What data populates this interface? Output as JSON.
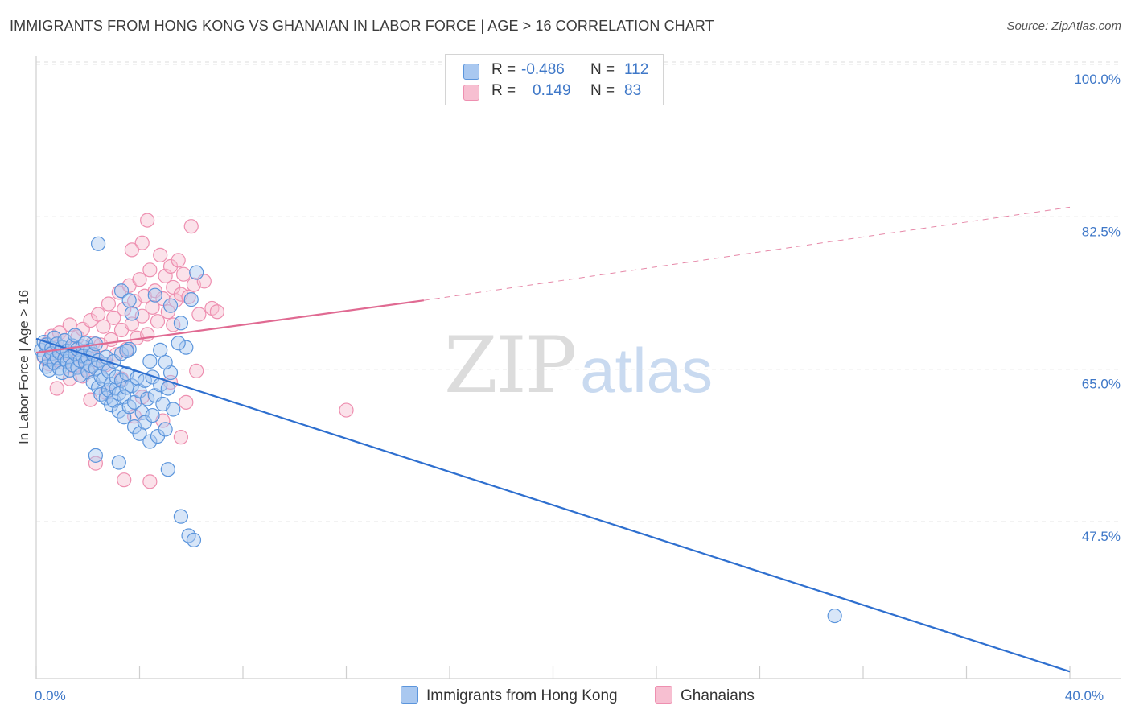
{
  "title": "IMMIGRANTS FROM HONG KONG VS GHANAIAN IN LABOR FORCE | AGE > 16 CORRELATION CHART",
  "source": "Source: ZipAtlas.com",
  "watermark": {
    "zip": "ZIP",
    "atlas": "atlas"
  },
  "legend": {
    "rows": [
      {
        "r_label": "R =",
        "r_value": "-0.486",
        "n_label": "N =",
        "n_value": "112"
      },
      {
        "r_label": "R =",
        "r_value": "0.149",
        "n_label": "N =",
        "n_value": "83"
      }
    ]
  },
  "bottom_legend": {
    "series1": "Immigrants from Hong Kong",
    "series2": "Ghanaians"
  },
  "colors": {
    "blue_fill": "#a9c8f0",
    "blue_stroke": "#5b95dc",
    "blue_line": "#2e6fcf",
    "pink_fill": "#f7bfd1",
    "pink_stroke": "#ee8fb0",
    "pink_line": "#e06a92",
    "tick": "#3f78c8",
    "grid": "#dedede"
  },
  "chart_data": {
    "type": "scatter",
    "title": "IMMIGRANTS FROM HONG KONG VS GHANAIAN IN LABOR FORCE | AGE > 16 CORRELATION CHART",
    "xlabel": "",
    "ylabel": "In Labor Force | Age > 16",
    "xlim": [
      0,
      40
    ],
    "ylim": [
      29.5,
      101
    ],
    "x_tick_labels": [
      {
        "v": 0,
        "t": "0.0%"
      },
      {
        "v": 40,
        "t": "40.0%"
      }
    ],
    "y_tick_labels": [
      {
        "v": 100,
        "t": "100.0%"
      },
      {
        "v": 82.5,
        "t": "82.5%"
      },
      {
        "v": 65,
        "t": "65.0%"
      },
      {
        "v": 47.5,
        "t": "47.5%"
      }
    ],
    "x_minor_ticks": [
      0,
      4,
      8,
      12,
      16,
      20,
      24,
      28,
      32,
      36,
      40
    ],
    "series": [
      {
        "name": "Immigrants from Hong Kong",
        "r": -0.486,
        "n": 112,
        "trend": {
          "x": [
            0,
            40
          ],
          "y": [
            68.5,
            30.3
          ],
          "dashed": false
        },
        "points": [
          [
            0.2,
            67.2
          ],
          [
            0.3,
            66.5
          ],
          [
            0.3,
            68.1
          ],
          [
            0.4,
            65.3
          ],
          [
            0.4,
            67.8
          ],
          [
            0.5,
            66.1
          ],
          [
            0.5,
            64.9
          ],
          [
            0.6,
            67.4
          ],
          [
            0.6,
            66.8
          ],
          [
            0.7,
            65.7
          ],
          [
            0.7,
            68.6
          ],
          [
            0.8,
            66.3
          ],
          [
            0.8,
            67.9
          ],
          [
            0.9,
            65.1
          ],
          [
            0.9,
            66.9
          ],
          [
            1.0,
            67.5
          ],
          [
            1.0,
            64.6
          ],
          [
            1.1,
            66.2
          ],
          [
            1.1,
            68.3
          ],
          [
            1.2,
            65.9
          ],
          [
            1.2,
            67.1
          ],
          [
            1.3,
            66.4
          ],
          [
            1.3,
            64.9
          ],
          [
            1.4,
            67.7
          ],
          [
            1.4,
            65.5
          ],
          [
            1.5,
            66.8
          ],
          [
            1.5,
            68.9
          ],
          [
            1.6,
            65.2
          ],
          [
            1.6,
            67.3
          ],
          [
            1.7,
            66.0
          ],
          [
            1.7,
            64.3
          ],
          [
            1.8,
            67.6
          ],
          [
            1.8,
            66.5
          ],
          [
            1.9,
            65.8
          ],
          [
            1.9,
            68.0
          ],
          [
            2.0,
            66.3
          ],
          [
            2.0,
            64.7
          ],
          [
            2.1,
            67.2
          ],
          [
            2.1,
            65.4
          ],
          [
            2.2,
            66.7
          ],
          [
            2.2,
            63.5
          ],
          [
            2.3,
            65.1
          ],
          [
            2.3,
            67.9
          ],
          [
            2.4,
            62.9
          ],
          [
            2.4,
            66.0
          ],
          [
            2.5,
            64.2
          ],
          [
            2.5,
            62.1
          ],
          [
            2.6,
            65.6
          ],
          [
            2.6,
            63.8
          ],
          [
            2.7,
            61.7
          ],
          [
            2.7,
            66.4
          ],
          [
            2.8,
            62.6
          ],
          [
            2.8,
            64.8
          ],
          [
            2.9,
            60.9
          ],
          [
            2.9,
            63.3
          ],
          [
            3.0,
            65.9
          ],
          [
            3.0,
            61.4
          ],
          [
            3.1,
            62.8
          ],
          [
            3.1,
            64.1
          ],
          [
            3.2,
            60.2
          ],
          [
            3.2,
            62.2
          ],
          [
            3.3,
            66.8
          ],
          [
            3.3,
            63.7
          ],
          [
            3.4,
            61.8
          ],
          [
            3.4,
            59.5
          ],
          [
            3.5,
            62.9
          ],
          [
            3.5,
            64.5
          ],
          [
            3.6,
            60.7
          ],
          [
            3.6,
            67.3
          ],
          [
            3.7,
            63.1
          ],
          [
            3.8,
            58.4
          ],
          [
            3.8,
            61.2
          ],
          [
            3.9,
            64.0
          ],
          [
            4.0,
            57.6
          ],
          [
            4.0,
            62.5
          ],
          [
            4.1,
            60.0
          ],
          [
            4.2,
            63.7
          ],
          [
            4.2,
            58.9
          ],
          [
            4.3,
            61.6
          ],
          [
            4.4,
            56.7
          ],
          [
            4.5,
            64.1
          ],
          [
            4.5,
            59.7
          ],
          [
            4.6,
            62.0
          ],
          [
            4.7,
            57.3
          ],
          [
            4.8,
            63.2
          ],
          [
            4.9,
            61.0
          ],
          [
            5.0,
            58.1
          ],
          [
            5.1,
            62.8
          ],
          [
            5.2,
            64.6
          ],
          [
            5.3,
            60.4
          ],
          [
            3.3,
            74.0
          ],
          [
            3.6,
            72.9
          ],
          [
            3.7,
            71.4
          ],
          [
            2.4,
            79.4
          ],
          [
            4.6,
            73.5
          ],
          [
            5.2,
            72.3
          ],
          [
            5.6,
            70.3
          ],
          [
            6.2,
            76.1
          ],
          [
            6.0,
            73.0
          ],
          [
            5.8,
            67.5
          ],
          [
            5.5,
            68.0
          ],
          [
            4.8,
            67.2
          ],
          [
            4.4,
            65.9
          ],
          [
            3.5,
            67.1
          ],
          [
            5.0,
            65.8
          ],
          [
            5.6,
            48.1
          ],
          [
            5.9,
            45.9
          ],
          [
            6.1,
            45.4
          ],
          [
            5.1,
            53.5
          ],
          [
            3.2,
            54.3
          ],
          [
            2.3,
            55.1
          ],
          [
            30.9,
            36.7
          ]
        ]
      },
      {
        "name": "Ghanaians",
        "r": 0.149,
        "n": 83,
        "trend": {
          "x": [
            0,
            15
          ],
          "y": [
            66.9,
            72.9
          ],
          "dashed": false
        },
        "trend_ext": {
          "x": [
            15,
            40
          ],
          "y": [
            72.9,
            83.6
          ],
          "dashed": true
        },
        "points": [
          [
            0.3,
            66.4
          ],
          [
            0.4,
            67.9
          ],
          [
            0.5,
            65.6
          ],
          [
            0.6,
            68.8
          ],
          [
            0.7,
            66.1
          ],
          [
            0.8,
            67.5
          ],
          [
            0.9,
            69.2
          ],
          [
            1.0,
            65.8
          ],
          [
            1.1,
            68.3
          ],
          [
            1.2,
            66.9
          ],
          [
            1.3,
            70.1
          ],
          [
            1.4,
            67.4
          ],
          [
            1.5,
            65.3
          ],
          [
            1.6,
            68.7
          ],
          [
            1.7,
            66.5
          ],
          [
            1.8,
            69.6
          ],
          [
            1.9,
            67.1
          ],
          [
            2.0,
            64.9
          ],
          [
            2.1,
            70.6
          ],
          [
            2.2,
            68.0
          ],
          [
            2.3,
            66.2
          ],
          [
            2.4,
            71.3
          ],
          [
            2.5,
            67.8
          ],
          [
            2.6,
            69.9
          ],
          [
            2.7,
            65.5
          ],
          [
            2.8,
            72.5
          ],
          [
            2.9,
            68.4
          ],
          [
            3.0,
            70.9
          ],
          [
            3.1,
            66.7
          ],
          [
            3.2,
            73.8
          ],
          [
            3.3,
            69.5
          ],
          [
            3.4,
            71.9
          ],
          [
            3.5,
            67.3
          ],
          [
            3.6,
            74.6
          ],
          [
            3.7,
            70.2
          ],
          [
            3.8,
            72.8
          ],
          [
            3.9,
            68.6
          ],
          [
            4.0,
            75.3
          ],
          [
            4.1,
            71.1
          ],
          [
            4.2,
            73.4
          ],
          [
            4.3,
            69.0
          ],
          [
            4.4,
            76.4
          ],
          [
            4.5,
            72.1
          ],
          [
            4.6,
            74.0
          ],
          [
            4.7,
            70.5
          ],
          [
            4.8,
            78.1
          ],
          [
            4.9,
            73.1
          ],
          [
            5.0,
            75.7
          ],
          [
            5.1,
            71.6
          ],
          [
            5.2,
            76.8
          ],
          [
            5.3,
            74.4
          ],
          [
            5.4,
            72.9
          ],
          [
            5.5,
            77.5
          ],
          [
            5.6,
            73.6
          ],
          [
            5.7,
            75.9
          ],
          [
            5.9,
            73.3
          ],
          [
            6.1,
            74.7
          ],
          [
            6.3,
            71.3
          ],
          [
            6.5,
            75.1
          ],
          [
            6.8,
            72.0
          ],
          [
            7.0,
            71.6
          ],
          [
            4.3,
            82.1
          ],
          [
            6.0,
            81.4
          ],
          [
            4.1,
            79.5
          ],
          [
            3.7,
            78.7
          ],
          [
            5.3,
            70.1
          ],
          [
            5.8,
            61.2
          ],
          [
            6.2,
            64.8
          ],
          [
            5.6,
            57.2
          ],
          [
            4.4,
            52.1
          ],
          [
            3.4,
            52.3
          ],
          [
            2.3,
            54.2
          ],
          [
            4.9,
            59.1
          ],
          [
            3.8,
            59.6
          ],
          [
            4.1,
            61.8
          ],
          [
            5.2,
            63.5
          ],
          [
            3.3,
            63.9
          ],
          [
            2.7,
            62.3
          ],
          [
            2.1,
            61.5
          ],
          [
            1.8,
            64.2
          ],
          [
            1.3,
            63.9
          ],
          [
            0.8,
            62.8
          ],
          [
            12.0,
            60.3
          ]
        ]
      }
    ]
  }
}
